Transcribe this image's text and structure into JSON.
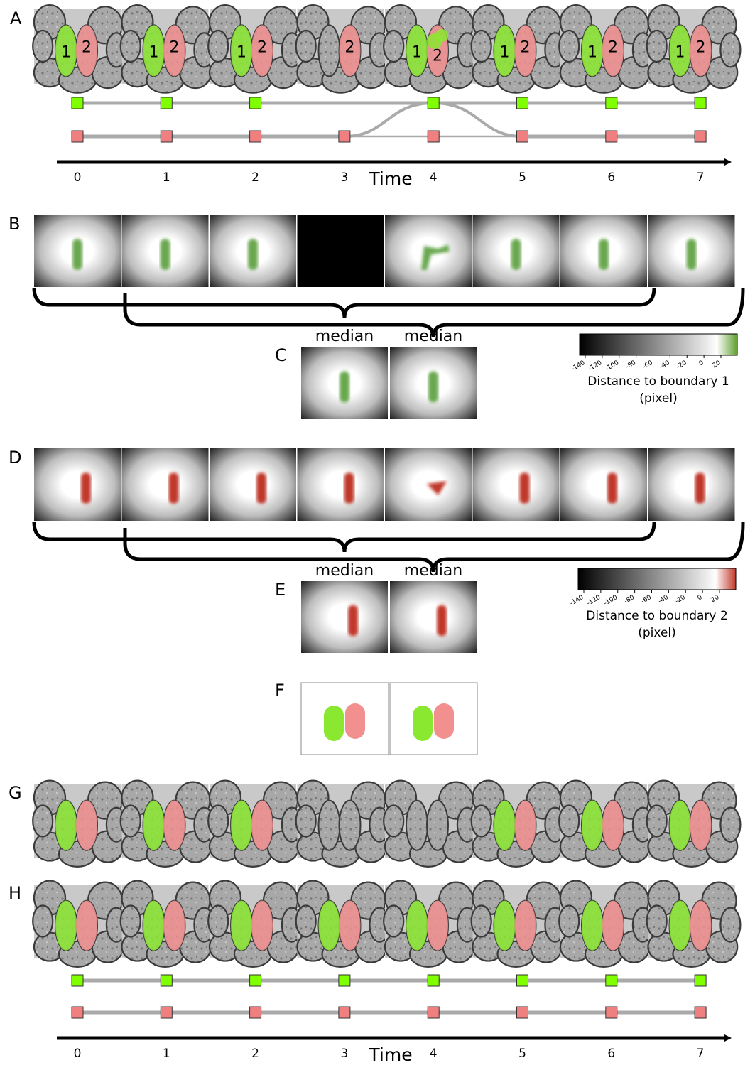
{
  "panels": [
    "A",
    "B",
    "C",
    "D",
    "E",
    "F",
    "G",
    "H"
  ],
  "time_axis": {
    "title": "Time",
    "ticks": [
      "0",
      "1",
      "2",
      "3",
      "4",
      "5",
      "6",
      "7"
    ]
  },
  "cell_labels": {
    "one": "1",
    "two": "2"
  },
  "median_label": "median",
  "colorbar1": {
    "label_line1": "Distance to boundary 1",
    "label_line2": "(pixel)",
    "ticks": [
      "-140",
      "-120",
      "-100",
      "-80",
      "-60",
      "-40",
      "-20",
      "0",
      "20"
    ],
    "accent": "#7ab53a"
  },
  "colorbar2": {
    "label_line1": "Distance to boundary 2",
    "label_line2": "(pixel)",
    "ticks": [
      "-140",
      "-120",
      "-100",
      "-80",
      "-60",
      "-40",
      "-20",
      "0",
      "20"
    ],
    "accent": "#c0392b"
  },
  "colors": {
    "cell1": "#8be830",
    "cell2": "#f28f8f",
    "track": "#aaaaaa",
    "marker1": "#7fff00",
    "marker2": "#f08080",
    "blurGreen": "#6aa84f",
    "blurRed": "#c0392b"
  }
}
